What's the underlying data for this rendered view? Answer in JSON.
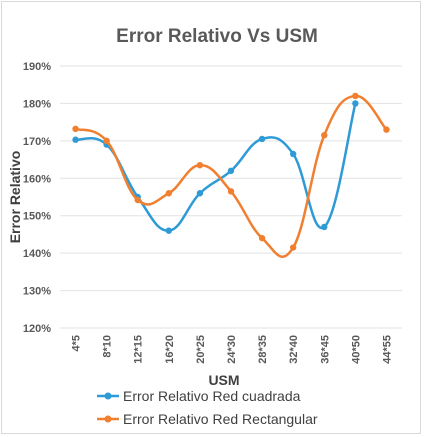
{
  "chart_data": {
    "type": "line",
    "title": "Error Relativo Vs USM",
    "xlabel": "USM",
    "ylabel": "Error Relativo",
    "categories": [
      "4*5",
      "8*10",
      "12*15",
      "16*20",
      "20*25",
      "24*30",
      "28*35",
      "32*40",
      "36*45",
      "40*50",
      "44*55"
    ],
    "yticks": [
      "120%",
      "130%",
      "140%",
      "150%",
      "160%",
      "170%",
      "180%",
      "190%"
    ],
    "ylim": [
      120,
      190
    ],
    "grid": true,
    "smooth": true,
    "legend_position": "bottom",
    "series": [
      {
        "name": "Error Relativo Red cuadrada",
        "color": "#2e9bd6",
        "values": [
          170.3,
          169,
          155,
          146,
          156,
          162,
          170.5,
          166.5,
          147,
          180,
          null
        ]
      },
      {
        "name": "Error Relativo Red Rectangular",
        "color": "#f07f2f",
        "values": [
          173.2,
          170,
          154.2,
          156,
          163.5,
          156.5,
          144,
          141.5,
          171.5,
          182,
          173
        ]
      }
    ]
  }
}
